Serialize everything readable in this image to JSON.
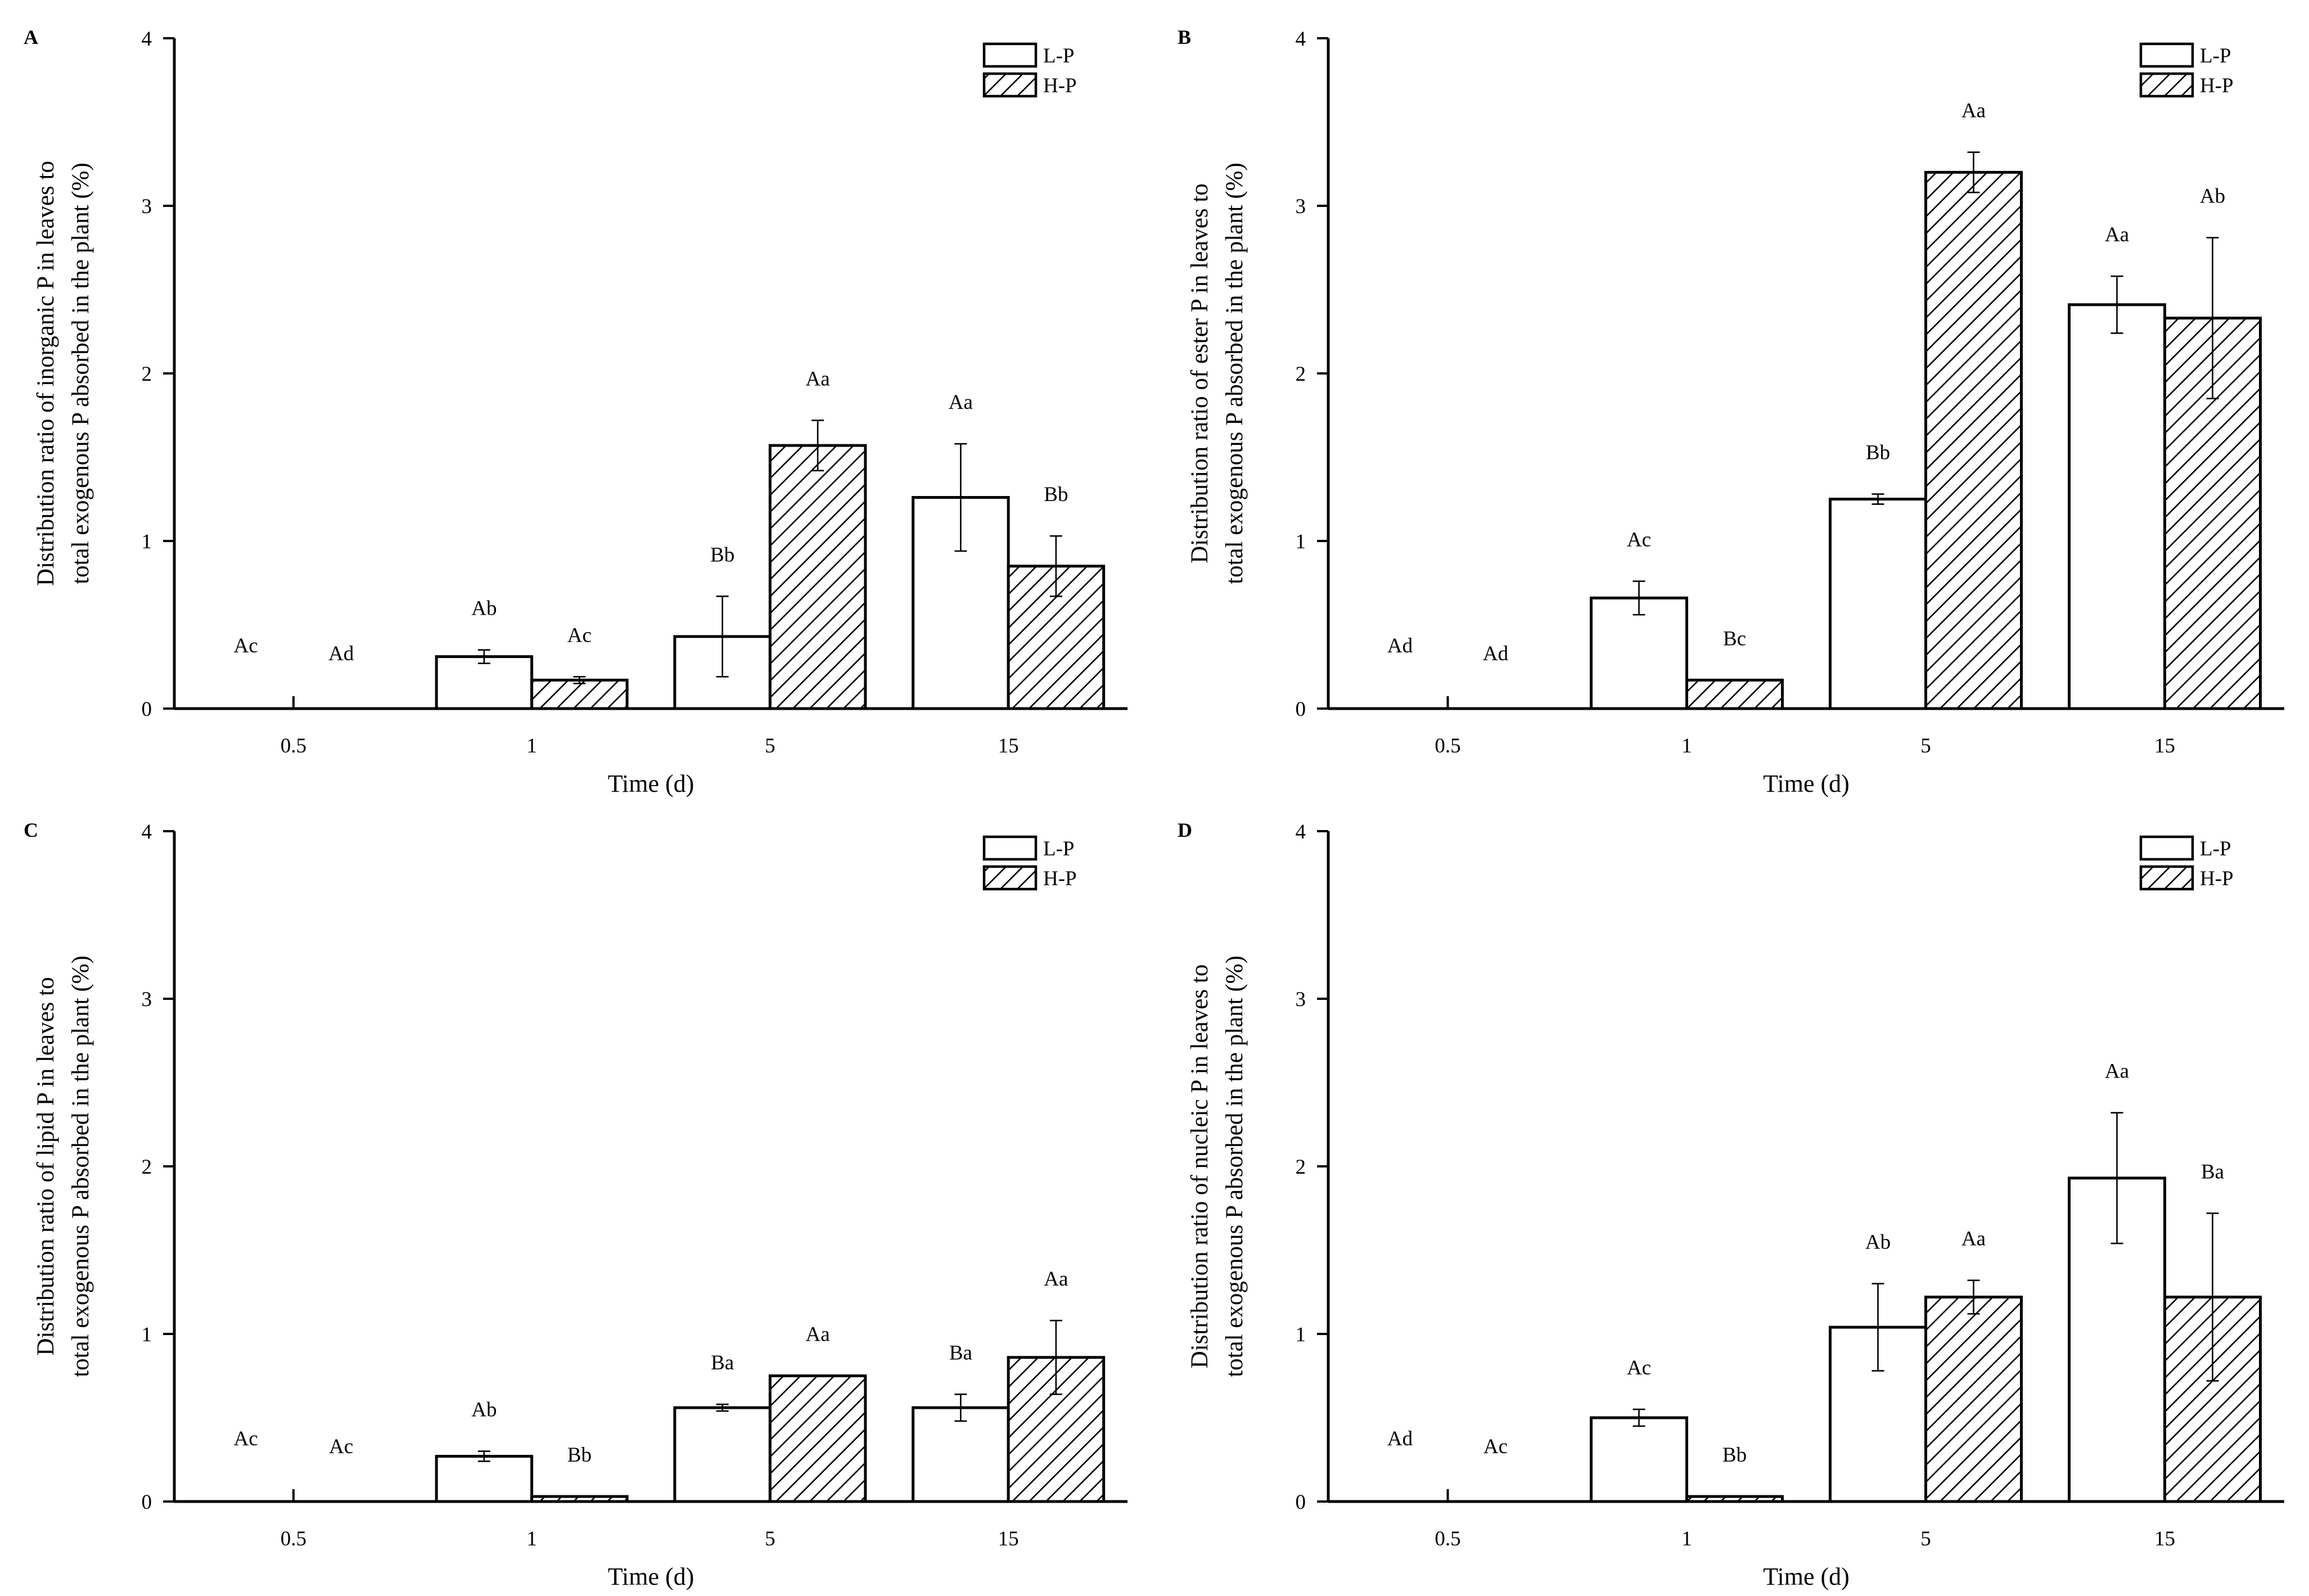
{
  "colors": {
    "ink": "#000000",
    "paper": "#ffffff"
  },
  "chart_data": [
    {
      "type": "bar",
      "panel": "A",
      "categories": [
        "0.5",
        "1",
        "5",
        "15"
      ],
      "xlabel": "Time (d)",
      "ylabel": [
        "Distribution ratio of inorganic P in leaves to",
        "total exogenous P absorbed in the plant (%)"
      ],
      "ylim": [
        0,
        4
      ],
      "yticks": [
        "0",
        "1",
        "2",
        "3",
        "4"
      ],
      "legend": [
        "L-P",
        "H-P"
      ],
      "legend_position": "top-right",
      "series": [
        {
          "name": "L-P",
          "pattern": "none",
          "values": [
            0,
            0.31,
            0.43,
            1.26
          ],
          "errors": [
            0,
            0.04,
            0.24,
            0.32
          ],
          "labels": [
            "Ac",
            "Ab",
            "Bb",
            "Aa"
          ]
        },
        {
          "name": "H-P",
          "pattern": "hatch",
          "values": [
            0,
            0.17,
            1.57,
            0.85
          ],
          "errors": [
            0,
            0.02,
            0.15,
            0.18
          ],
          "labels": [
            "Ad",
            "Ac",
            "Aa",
            "Bb"
          ]
        }
      ]
    },
    {
      "type": "bar",
      "panel": "B",
      "categories": [
        "0.5",
        "1",
        "5",
        "15"
      ],
      "xlabel": "Time (d)",
      "ylabel": [
        "Distribution ratio of ester P in leaves to",
        "total exogenous P absorbed in the plant (%)"
      ],
      "ylim": [
        0,
        4
      ],
      "yticks": [
        "0",
        "1",
        "2",
        "3",
        "4"
      ],
      "legend": [
        "L-P",
        "H-P"
      ],
      "legend_position": "top-right",
      "series": [
        {
          "name": "L-P",
          "pattern": "none",
          "values": [
            0,
            0.66,
            1.25,
            2.41
          ],
          "errors": [
            0,
            0.1,
            0.03,
            0.17
          ],
          "labels": [
            "Ad",
            "Ac",
            "Bb",
            "Aa"
          ]
        },
        {
          "name": "H-P",
          "pattern": "hatch",
          "values": [
            0,
            0.17,
            3.2,
            2.33
          ],
          "errors": [
            0,
            0,
            0.12,
            0.48
          ],
          "labels": [
            "Ad",
            "Bc",
            "Aa",
            "Ab"
          ]
        }
      ]
    },
    {
      "type": "bar",
      "panel": "C",
      "categories": [
        "0.5",
        "1",
        "5",
        "15"
      ],
      "xlabel": "Time (d)",
      "ylabel": [
        "Distribution ratio of lipid P in leaves to",
        "total exogenous P absorbed in the plant (%)"
      ],
      "ylim": [
        0,
        4
      ],
      "yticks": [
        "0",
        "1",
        "2",
        "3",
        "4"
      ],
      "legend": [
        "L-P",
        "H-P"
      ],
      "legend_position": "top-right",
      "series": [
        {
          "name": "L-P",
          "pattern": "none",
          "values": [
            0,
            0.27,
            0.56,
            0.56
          ],
          "errors": [
            0,
            0.03,
            0.02,
            0.08
          ],
          "labels": [
            "Ac",
            "Ab",
            "Ba",
            "Ba"
          ]
        },
        {
          "name": "H-P",
          "pattern": "hatch",
          "values": [
            0,
            0.03,
            0.75,
            0.86
          ],
          "errors": [
            0,
            0,
            0,
            0.22
          ],
          "labels": [
            "Ac",
            "Bb",
            "Aa",
            "Aa"
          ]
        }
      ]
    },
    {
      "type": "bar",
      "panel": "D",
      "categories": [
        "0.5",
        "1",
        "5",
        "15"
      ],
      "xlabel": "Time (d)",
      "ylabel": [
        "Distribution ratio of nucleic P in leaves to",
        "total exogenous P absorbed in the plant (%)"
      ],
      "ylim": [
        0,
        4
      ],
      "yticks": [
        "0",
        "1",
        "2",
        "3",
        "4"
      ],
      "legend": [
        "L-P",
        "H-P"
      ],
      "legend_position": "top-right",
      "series": [
        {
          "name": "L-P",
          "pattern": "none",
          "values": [
            0,
            0.5,
            1.04,
            1.93
          ],
          "errors": [
            0,
            0.05,
            0.26,
            0.39
          ],
          "labels": [
            "Ad",
            "Ac",
            "Ab",
            "Aa"
          ]
        },
        {
          "name": "H-P",
          "pattern": "hatch",
          "values": [
            0,
            0.03,
            1.22,
            1.22
          ],
          "errors": [
            0,
            0,
            0.1,
            0.5
          ],
          "labels": [
            "Ac",
            "Bb",
            "Aa",
            "Ba"
          ]
        }
      ]
    }
  ]
}
